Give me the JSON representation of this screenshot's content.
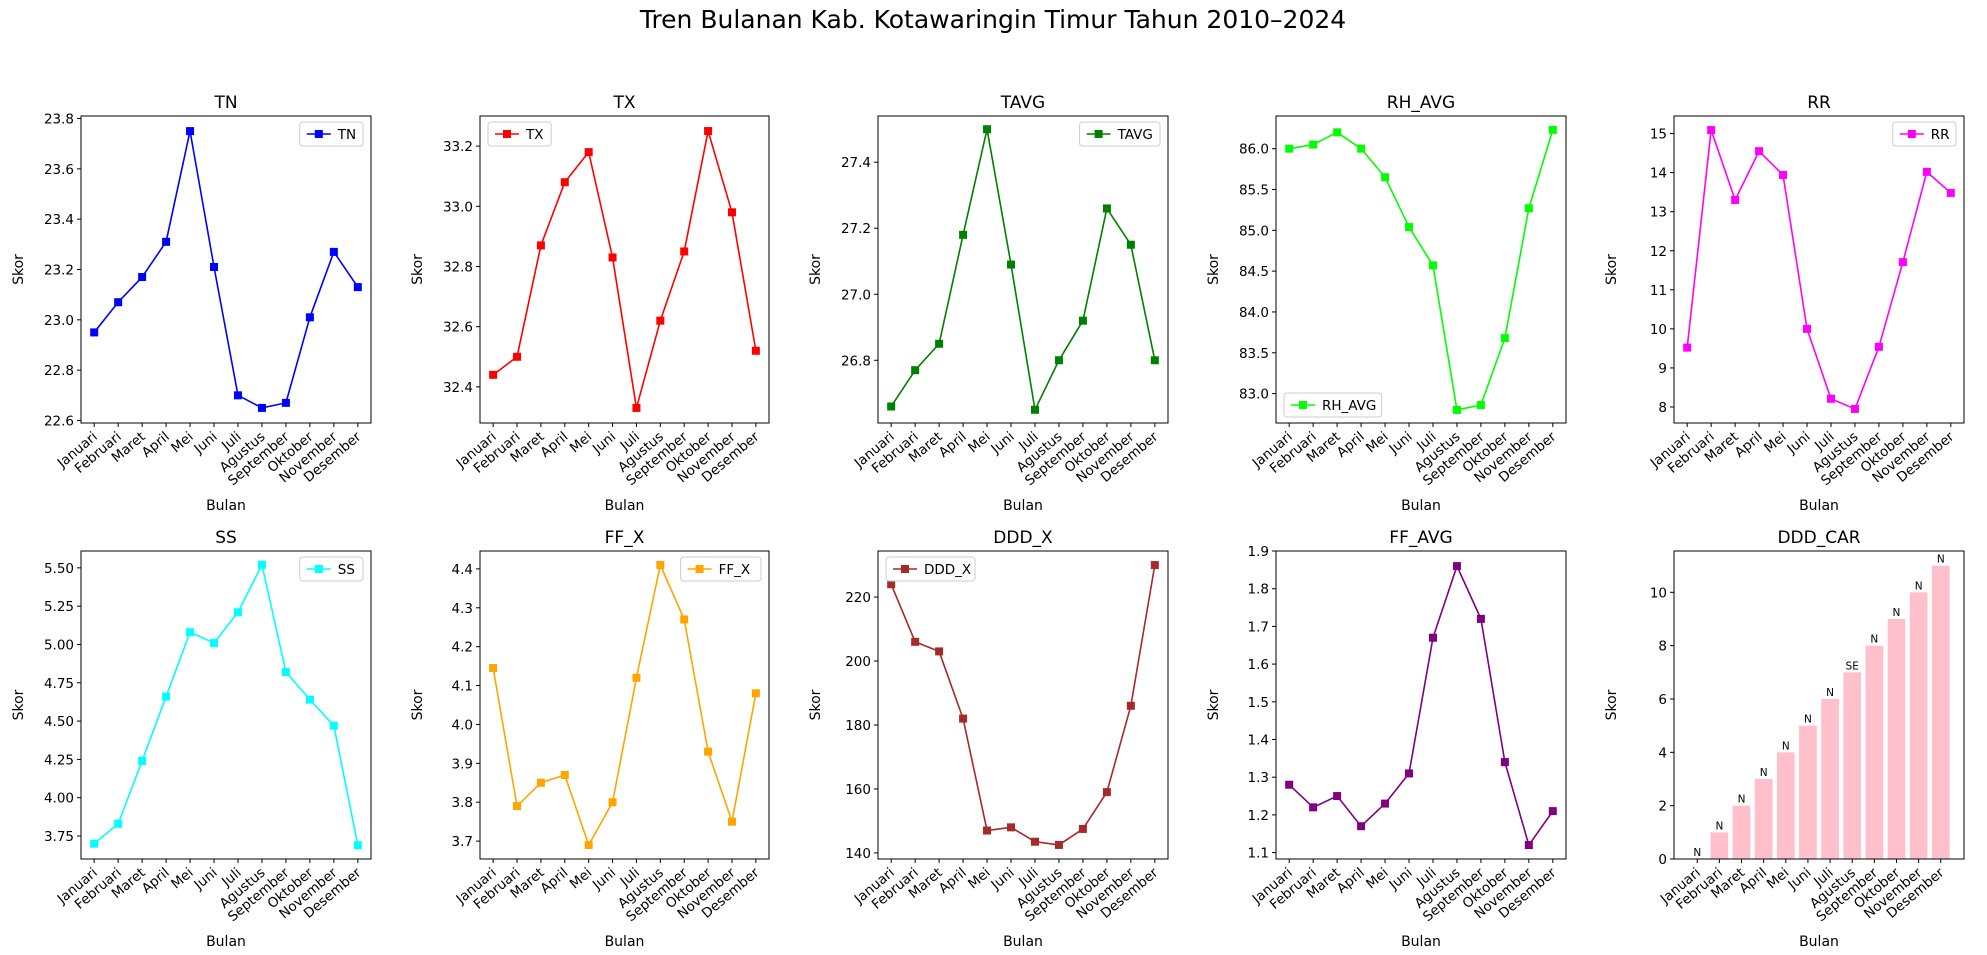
{
  "figure": {
    "title": "Tren Bulanan Kab. Kotawaringin Timur Tahun 2010–2024"
  },
  "chart_data": [
    {
      "type": "line",
      "title": "TN",
      "xlabel": "Bulan",
      "ylabel": "Skor",
      "color": "#0000ff",
      "legend": {
        "label": "TN",
        "loc": "upper right"
      },
      "categories": [
        "Januari",
        "Februari",
        "Maret",
        "April",
        "Mei",
        "Juni",
        "Juli",
        "Agustus",
        "September",
        "Oktober",
        "November",
        "Desember"
      ],
      "values": [
        22.95,
        23.07,
        23.17,
        23.31,
        23.75,
        23.21,
        22.7,
        22.65,
        22.67,
        23.01,
        23.27,
        23.13
      ],
      "ylim": [
        22.59,
        23.81
      ],
      "yticks": [
        "22.6",
        "22.8",
        "23.0",
        "23.2",
        "23.4",
        "23.6",
        "23.8"
      ]
    },
    {
      "type": "line",
      "title": "TX",
      "xlabel": "Bulan",
      "ylabel": "Skor",
      "color": "#ff0000",
      "legend": {
        "label": "TX",
        "loc": "upper left"
      },
      "categories": [
        "Januari",
        "Februari",
        "Maret",
        "April",
        "Mei",
        "Juni",
        "Juli",
        "Agustus",
        "September",
        "Oktober",
        "November",
        "Desember"
      ],
      "values": [
        32.44,
        32.5,
        32.87,
        33.08,
        33.18,
        32.83,
        32.33,
        32.62,
        32.85,
        33.25,
        32.98,
        32.52
      ],
      "ylim": [
        32.28,
        33.3
      ],
      "yticks": [
        "32.4",
        "32.6",
        "32.8",
        "33.0",
        "33.2"
      ]
    },
    {
      "type": "line",
      "title": "TAVG",
      "xlabel": "Bulan",
      "ylabel": "Skor",
      "color": "#008000",
      "legend": {
        "label": "TAVG",
        "loc": "upper right"
      },
      "categories": [
        "Januari",
        "Februari",
        "Maret",
        "April",
        "Mei",
        "Juni",
        "Juli",
        "Agustus",
        "September",
        "Oktober",
        "November",
        "Desember"
      ],
      "values": [
        26.66,
        26.77,
        26.85,
        27.18,
        27.5,
        27.09,
        26.65,
        26.8,
        26.92,
        27.26,
        27.15,
        26.8
      ],
      "ylim": [
        26.61,
        27.54
      ],
      "yticks": [
        "26.8",
        "27.0",
        "27.2",
        "27.4"
      ]
    },
    {
      "type": "line",
      "title": "RH_AVG",
      "xlabel": "Bulan",
      "ylabel": "Skor",
      "color": "#00ff00",
      "legend": {
        "label": "RH_AVG",
        "loc": "lower left"
      },
      "categories": [
        "Januari",
        "Februari",
        "Maret",
        "April",
        "Mei",
        "Juni",
        "Juli",
        "Agustus",
        "September",
        "Oktober",
        "November",
        "Desember"
      ],
      "values": [
        86.0,
        86.05,
        86.2,
        86.0,
        85.65,
        85.04,
        84.57,
        82.8,
        82.86,
        83.68,
        85.27,
        86.23
      ],
      "ylim": [
        82.64,
        86.4
      ],
      "yticks": [
        "83.0",
        "83.5",
        "84.0",
        "84.5",
        "85.0",
        "85.5",
        "86.0"
      ]
    },
    {
      "type": "line",
      "title": "RR",
      "xlabel": "Bulan",
      "ylabel": "Skor",
      "color": "#ff00ff",
      "legend": {
        "label": "RR",
        "loc": "upper right"
      },
      "categories": [
        "Januari",
        "Februari",
        "Maret",
        "April",
        "Mei",
        "Juni",
        "Juli",
        "Agustus",
        "September",
        "Oktober",
        "November",
        "Desember"
      ],
      "values": [
        9.52,
        15.09,
        13.3,
        14.55,
        13.94,
        10.0,
        8.21,
        7.95,
        9.54,
        11.71,
        14.02,
        13.48
      ],
      "ylim": [
        7.59,
        15.45
      ],
      "yticks": [
        "8",
        "9",
        "10",
        "11",
        "12",
        "13",
        "14",
        "15"
      ]
    },
    {
      "type": "line",
      "title": "SS",
      "xlabel": "Bulan",
      "ylabel": "Skor",
      "color": "#00ffff",
      "legend": {
        "label": "SS",
        "loc": "upper right"
      },
      "categories": [
        "Januari",
        "Februari",
        "Maret",
        "April",
        "Mei",
        "Juni",
        "Juli",
        "Agustus",
        "September",
        "Oktober",
        "November",
        "Desember"
      ],
      "values": [
        3.7,
        3.83,
        4.24,
        4.66,
        5.08,
        5.01,
        5.21,
        5.52,
        4.82,
        4.64,
        4.47,
        3.69
      ],
      "ylim": [
        3.6,
        5.61
      ],
      "yticks": [
        "3.75",
        "4.00",
        "4.25",
        "4.50",
        "4.75",
        "5.00",
        "5.25",
        "5.50"
      ]
    },
    {
      "type": "line",
      "title": "FF_X",
      "xlabel": "Bulan",
      "ylabel": "Skor",
      "color": "#ffa500",
      "legend": {
        "label": "FF_X",
        "loc": "upper right"
      },
      "categories": [
        "Januari",
        "Februari",
        "Maret",
        "April",
        "Mei",
        "Juni",
        "Juli",
        "Agustus",
        "September",
        "Oktober",
        "November",
        "Desember"
      ],
      "values": [
        4.145,
        3.79,
        3.85,
        3.87,
        3.69,
        3.8,
        4.12,
        4.41,
        4.27,
        3.93,
        3.75,
        4.08
      ],
      "ylim": [
        3.654,
        4.446
      ],
      "yticks": [
        "3.7",
        "3.8",
        "3.9",
        "4.0",
        "4.1",
        "4.2",
        "4.3",
        "4.4"
      ]
    },
    {
      "type": "line",
      "title": "DDD_X",
      "xlabel": "Bulan",
      "ylabel": "Skor",
      "color": "#a52a2a",
      "legend": {
        "label": "DDD_X",
        "loc": "upper left"
      },
      "categories": [
        "Januari",
        "Februari",
        "Maret",
        "April",
        "Mei",
        "Juni",
        "Juli",
        "Agustus",
        "September",
        "Oktober",
        "November",
        "Desember"
      ],
      "values": [
        224,
        206,
        203,
        182,
        147,
        148,
        143.5,
        142.5,
        147.5,
        159,
        186,
        230
      ],
      "ylim": [
        138.1,
        234.4
      ],
      "yticks": [
        "140",
        "160",
        "180",
        "200",
        "220"
      ]
    },
    {
      "type": "line",
      "title": "FF_AVG",
      "xlabel": "Bulan",
      "ylabel": "Skor",
      "color": "#800080",
      "legend": null,
      "categories": [
        "Januari",
        "Februari",
        "Maret",
        "April",
        "Mei",
        "Juni",
        "Juli",
        "Agustus",
        "September",
        "Oktober",
        "November",
        "Desember"
      ],
      "values": [
        1.28,
        1.22,
        1.25,
        1.17,
        1.23,
        1.31,
        1.67,
        1.86,
        1.72,
        1.34,
        1.12,
        1.21
      ],
      "ylim": [
        1.083,
        1.9
      ],
      "yticks": [
        "1.1",
        "1.2",
        "1.3",
        "1.4",
        "1.5",
        "1.6",
        "1.7",
        "1.8",
        "1.9"
      ]
    },
    {
      "type": "bar",
      "title": "DDD_CAR",
      "xlabel": "Bulan",
      "ylabel": "Skor",
      "color": "#ffc0cb",
      "legend": null,
      "categories": [
        "Januari",
        "Februari",
        "Maret",
        "April",
        "Mei",
        "Juni",
        "Juli",
        "Agustus",
        "September",
        "Oktober",
        "November",
        "Desember"
      ],
      "values": [
        0,
        1,
        2,
        3,
        4,
        5,
        6,
        7,
        8,
        9,
        10,
        11
      ],
      "bar_labels": [
        "N",
        "N",
        "N",
        "N",
        "N",
        "N",
        "N",
        "SE",
        "N",
        "N",
        "N",
        "N"
      ],
      "ylim": [
        0,
        11.55
      ],
      "yticks": [
        "0",
        "2",
        "4",
        "6",
        "8",
        "10"
      ]
    }
  ]
}
